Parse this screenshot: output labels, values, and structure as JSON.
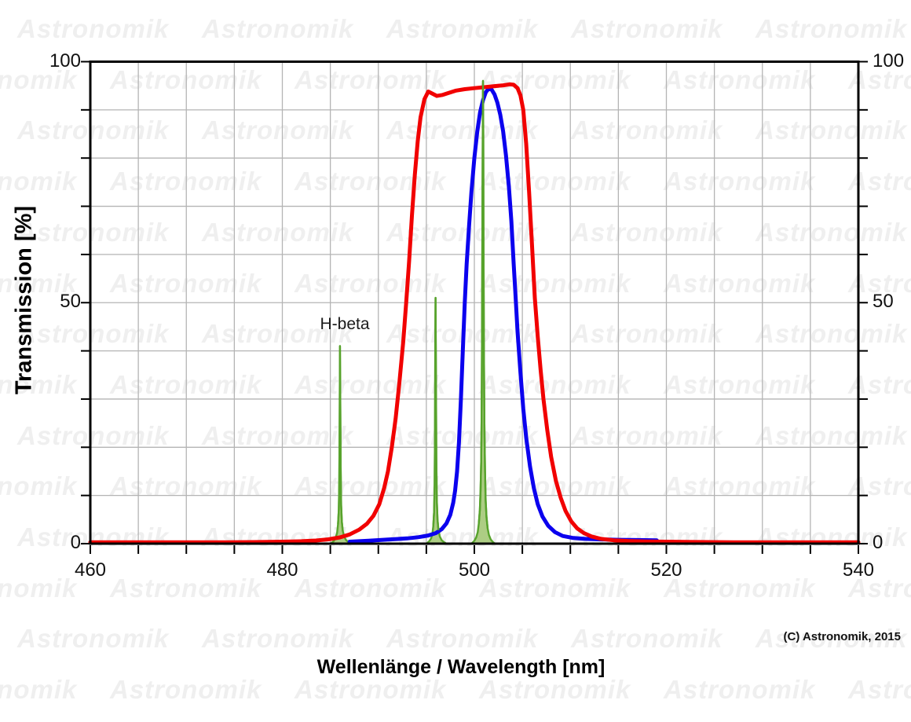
{
  "watermark": {
    "text": "Astronomik",
    "color": "#efefef"
  },
  "footer": {
    "copyright": "(C) Astronomik, 2015"
  },
  "chart_data": {
    "type": "line",
    "title": "",
    "xlabel": "Wellenlänge / Wavelength [nm]",
    "ylabel": "Transmission [%]",
    "xlim": [
      460,
      540
    ],
    "ylim": [
      0,
      100
    ],
    "grid": true,
    "x_minor_tick_step_nm": 5,
    "y_minor_tick_step_pct": 10,
    "x_ticks": [
      {
        "value": 460,
        "label": "460"
      },
      {
        "value": 480,
        "label": "480"
      },
      {
        "value": 500,
        "label": "500"
      },
      {
        "value": 520,
        "label": "520"
      },
      {
        "value": 540,
        "label": "540"
      }
    ],
    "y_ticks": [
      {
        "value": 0,
        "label": "0"
      },
      {
        "value": 50,
        "label": "50"
      },
      {
        "value": 100,
        "label": "100"
      }
    ],
    "annotations": {
      "hbeta": {
        "text": "H-beta",
        "x_nm": 486,
        "y_pct": 44
      }
    },
    "colors": {
      "red_curve": "#f10000",
      "blue_curve": "#0b00ee",
      "green_line_stroke": "#57a32c",
      "green_line_fill": "#a9ca7d",
      "grid": "#b4b4b4",
      "frame": "#000000"
    },
    "series": [
      {
        "name": "emission-line-h-beta-486nm",
        "kind": "filled-spike",
        "peak_nm": 486.0,
        "peak_pct": 41,
        "points": [
          [
            485.0,
            0
          ],
          [
            485.35,
            0.5
          ],
          [
            485.55,
            1.2
          ],
          [
            485.7,
            2.2
          ],
          [
            485.8,
            4
          ],
          [
            485.88,
            7
          ],
          [
            485.93,
            13
          ],
          [
            485.97,
            26
          ],
          [
            486.0,
            41
          ],
          [
            486.04,
            30
          ],
          [
            486.08,
            16
          ],
          [
            486.13,
            8
          ],
          [
            486.2,
            4.5
          ],
          [
            486.3,
            2.6
          ],
          [
            486.45,
            1.4
          ],
          [
            486.65,
            0.7
          ],
          [
            486.9,
            0.3
          ],
          [
            487.15,
            0
          ]
        ]
      },
      {
        "name": "emission-line-oiii-496nm",
        "kind": "filled-spike",
        "peak_nm": 495.95,
        "peak_pct": 51,
        "points": [
          [
            495.0,
            0
          ],
          [
            495.3,
            0.5
          ],
          [
            495.5,
            1.1
          ],
          [
            495.62,
            2
          ],
          [
            495.72,
            3.6
          ],
          [
            495.8,
            6.5
          ],
          [
            495.86,
            12
          ],
          [
            495.9,
            24
          ],
          [
            495.93,
            40
          ],
          [
            495.96,
            51
          ],
          [
            496.0,
            36
          ],
          [
            496.04,
            18
          ],
          [
            496.09,
            9
          ],
          [
            496.16,
            5
          ],
          [
            496.26,
            2.8
          ],
          [
            496.4,
            1.5
          ],
          [
            496.6,
            0.7
          ],
          [
            496.85,
            0.3
          ],
          [
            497.1,
            0
          ]
        ]
      },
      {
        "name": "emission-line-oiii-501nm",
        "kind": "filled-spike",
        "peak_nm": 500.9,
        "peak_pct": 96,
        "points": [
          [
            499.7,
            0
          ],
          [
            500.0,
            0.6
          ],
          [
            500.2,
            1.3
          ],
          [
            500.35,
            2.4
          ],
          [
            500.47,
            4.2
          ],
          [
            500.57,
            7
          ],
          [
            500.65,
            11
          ],
          [
            500.71,
            17
          ],
          [
            500.76,
            27
          ],
          [
            500.8,
            45
          ],
          [
            500.84,
            70
          ],
          [
            500.88,
            90
          ],
          [
            500.9,
            96
          ],
          [
            500.93,
            85
          ],
          [
            500.96,
            62
          ],
          [
            501.0,
            40
          ],
          [
            501.05,
            25
          ],
          [
            501.11,
            15
          ],
          [
            501.18,
            9
          ],
          [
            501.27,
            5.5
          ],
          [
            501.38,
            3.2
          ],
          [
            501.52,
            1.8
          ],
          [
            501.7,
            0.9
          ],
          [
            501.9,
            0.4
          ],
          [
            502.15,
            0
          ]
        ]
      },
      {
        "name": "blue-filter-curve-narrow-bandpass",
        "kind": "line",
        "points": [
          [
            487,
            0.4
          ],
          [
            489,
            0.6
          ],
          [
            491,
            0.85
          ],
          [
            493,
            1.1
          ],
          [
            494.2,
            1.35
          ],
          [
            495.2,
            1.7
          ],
          [
            496,
            2.2
          ],
          [
            496.6,
            3
          ],
          [
            497.1,
            4.2
          ],
          [
            497.5,
            6
          ],
          [
            497.8,
            8.5
          ],
          [
            498,
            11
          ],
          [
            498.2,
            15
          ],
          [
            498.4,
            21
          ],
          [
            498.6,
            30
          ],
          [
            498.8,
            40
          ],
          [
            499,
            50
          ],
          [
            499.2,
            58
          ],
          [
            499.45,
            66
          ],
          [
            499.7,
            73
          ],
          [
            500,
            80
          ],
          [
            500.3,
            85.5
          ],
          [
            500.6,
            89.5
          ],
          [
            500.9,
            92
          ],
          [
            501.2,
            93.7
          ],
          [
            501.5,
            94.4
          ],
          [
            501.8,
            94.2
          ],
          [
            502.1,
            93.2
          ],
          [
            502.4,
            91.5
          ],
          [
            502.7,
            89
          ],
          [
            503,
            85.5
          ],
          [
            503.3,
            80.5
          ],
          [
            503.6,
            74
          ],
          [
            503.85,
            67
          ],
          [
            504.1,
            58
          ],
          [
            504.3,
            51
          ],
          [
            504.5,
            44
          ],
          [
            504.8,
            35.5
          ],
          [
            505.1,
            28
          ],
          [
            505.4,
            22
          ],
          [
            505.8,
            16
          ],
          [
            506.2,
            11.5
          ],
          [
            506.6,
            8.2
          ],
          [
            507.1,
            5.6
          ],
          [
            507.7,
            3.7
          ],
          [
            508.4,
            2.4
          ],
          [
            509.2,
            1.6
          ],
          [
            510.2,
            1.2
          ],
          [
            511.5,
            1
          ],
          [
            513,
            0.9
          ],
          [
            515,
            0.8
          ],
          [
            517,
            0.75
          ],
          [
            519,
            0.7
          ]
        ]
      },
      {
        "name": "red-filter-curve-broad-bandpass",
        "kind": "line",
        "points": [
          [
            460,
            0.3
          ],
          [
            465,
            0.3
          ],
          [
            470,
            0.3
          ],
          [
            474,
            0.3
          ],
          [
            477,
            0.32
          ],
          [
            480,
            0.4
          ],
          [
            482,
            0.5
          ],
          [
            483.5,
            0.65
          ],
          [
            484.8,
            0.9
          ],
          [
            486,
            1.3
          ],
          [
            487,
            1.9
          ],
          [
            488,
            2.9
          ],
          [
            488.8,
            4.1
          ],
          [
            489.5,
            5.8
          ],
          [
            490.1,
            8.2
          ],
          [
            490.6,
            11.5
          ],
          [
            491,
            15
          ],
          [
            491.4,
            20
          ],
          [
            491.8,
            26
          ],
          [
            492.2,
            33.5
          ],
          [
            492.6,
            42
          ],
          [
            492.9,
            50
          ],
          [
            493.2,
            58.5
          ],
          [
            493.5,
            68
          ],
          [
            493.8,
            76.5
          ],
          [
            494.1,
            83.5
          ],
          [
            494.4,
            88.5
          ],
          [
            494.8,
            92.2
          ],
          [
            495.2,
            93.8
          ],
          [
            495.6,
            93.4
          ],
          [
            496.1,
            92.9
          ],
          [
            496.7,
            93.1
          ],
          [
            497.3,
            93.5
          ],
          [
            498.1,
            94
          ],
          [
            499,
            94.3
          ],
          [
            500,
            94.5
          ],
          [
            501,
            94.7
          ],
          [
            502,
            94.9
          ],
          [
            503,
            95.1
          ],
          [
            503.7,
            95.3
          ],
          [
            504.1,
            95.2
          ],
          [
            504.5,
            94.5
          ],
          [
            504.8,
            93
          ],
          [
            505.1,
            90
          ],
          [
            505.4,
            83
          ],
          [
            505.7,
            73
          ],
          [
            506,
            62
          ],
          [
            506.3,
            51
          ],
          [
            506.6,
            43
          ],
          [
            506.9,
            36
          ],
          [
            507.2,
            30
          ],
          [
            507.6,
            23.5
          ],
          [
            508,
            18
          ],
          [
            508.5,
            13
          ],
          [
            509,
            9.5
          ],
          [
            509.5,
            6.8
          ],
          [
            510.1,
            4.6
          ],
          [
            510.7,
            3.2
          ],
          [
            511.4,
            2.2
          ],
          [
            512.2,
            1.5
          ],
          [
            513.2,
            1
          ],
          [
            514.5,
            0.7
          ],
          [
            516,
            0.55
          ],
          [
            518,
            0.45
          ],
          [
            520,
            0.4
          ],
          [
            523,
            0.35
          ],
          [
            527,
            0.3
          ],
          [
            532,
            0.3
          ],
          [
            536,
            0.3
          ],
          [
            540,
            0.3
          ]
        ]
      }
    ]
  }
}
